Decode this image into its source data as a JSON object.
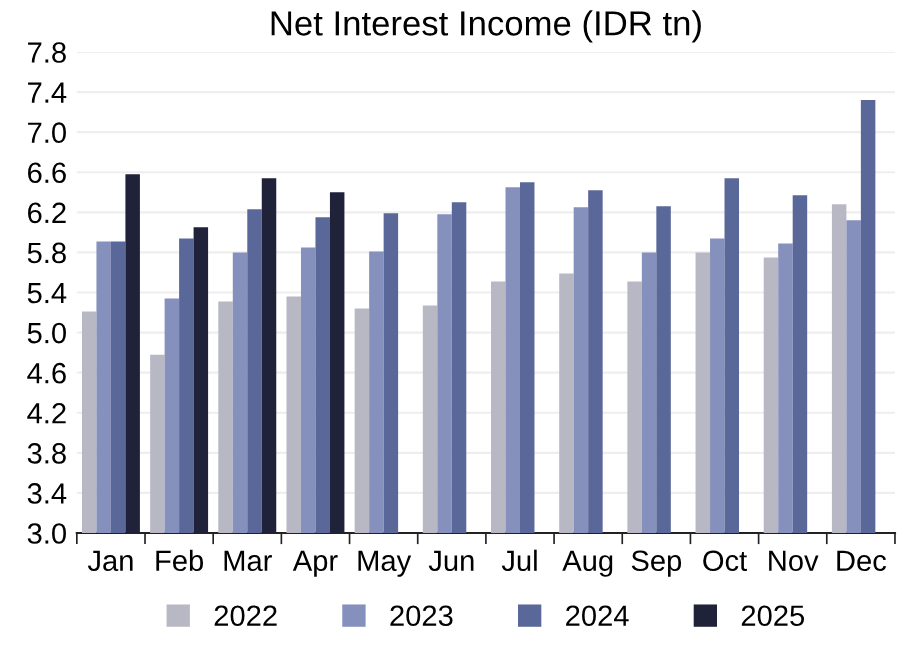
{
  "chart_data": {
    "type": "bar",
    "title": "Net Interest Income (IDR tn)",
    "categories": [
      "Jan",
      "Feb",
      "Mar",
      "Apr",
      "May",
      "Jun",
      "Jul",
      "Aug",
      "Sep",
      "Oct",
      "Nov",
      "Dec"
    ],
    "series": [
      {
        "name": "2022",
        "color": "#b8b8c4",
        "values": [
          5.21,
          4.78,
          5.31,
          5.36,
          5.24,
          5.27,
          5.51,
          5.59,
          5.51,
          5.8,
          5.75,
          6.28
        ]
      },
      {
        "name": "2023",
        "color": "#8590bd",
        "values": [
          5.91,
          5.34,
          5.8,
          5.85,
          5.81,
          6.18,
          6.45,
          6.25,
          5.8,
          5.94,
          5.89,
          6.12
        ]
      },
      {
        "name": "2024",
        "color": "#5a6899",
        "values": [
          5.91,
          5.94,
          6.23,
          6.15,
          6.19,
          6.3,
          6.5,
          6.42,
          6.26,
          6.54,
          6.37,
          7.32
        ]
      },
      {
        "name": "2025",
        "color": "#1f2238",
        "values": [
          6.58,
          6.05,
          6.54,
          6.4,
          null,
          null,
          null,
          null,
          null,
          null,
          null,
          null
        ]
      }
    ],
    "ylim": [
      3.0,
      7.8
    ],
    "yticks": [
      {
        "value": 3.0,
        "label": "3.0"
      },
      {
        "value": 3.4,
        "label": "3.4"
      },
      {
        "value": 3.8,
        "label": "3.8"
      },
      {
        "value": 4.2,
        "label": "4.2"
      },
      {
        "value": 4.6,
        "label": "4.6"
      },
      {
        "value": 5.0,
        "label": "5.0"
      },
      {
        "value": 5.4,
        "label": "5.4"
      },
      {
        "value": 5.8,
        "label": "5.8"
      },
      {
        "value": 6.2,
        "label": "6.2"
      },
      {
        "value": 6.6,
        "label": "6.6"
      },
      {
        "value": 7.0,
        "label": "7.0"
      },
      {
        "value": 7.4,
        "label": "7.4"
      },
      {
        "value": 7.8,
        "label": "7.8"
      }
    ],
    "grid": "y",
    "legend": "bottom"
  }
}
